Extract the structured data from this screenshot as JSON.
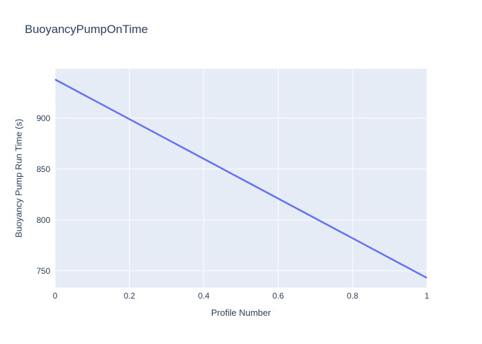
{
  "figure": {
    "background_color": "#ffffff"
  },
  "chart_data": {
    "type": "line",
    "title": "BuoyancyPumpOnTime",
    "xlabel": "Profile Number",
    "ylabel": "Buoyancy Pump Run Time (s)",
    "series": [
      {
        "name": "BuoyancyPumpOnTime",
        "x": [
          0,
          1
        ],
        "y": [
          938,
          743
        ]
      }
    ],
    "xlim": [
      0,
      1
    ],
    "ylim": [
      733.5,
      948.5
    ],
    "xticks": [
      0,
      0.2,
      0.4,
      0.6,
      0.8,
      1
    ],
    "xtick_labels": [
      "0",
      "0.2",
      "0.4",
      "0.6",
      "0.8",
      "1"
    ],
    "yticks": [
      750,
      800,
      850,
      900
    ],
    "ytick_labels": [
      "750",
      "800",
      "850",
      "900"
    ],
    "grid": true,
    "legend": false,
    "legend_position": "none",
    "line_color": "#636efa",
    "line_width": 2.5,
    "plot_background": "#e5ecf6",
    "grid_color": "#ffffff",
    "font_color": "#2a3f5f"
  }
}
